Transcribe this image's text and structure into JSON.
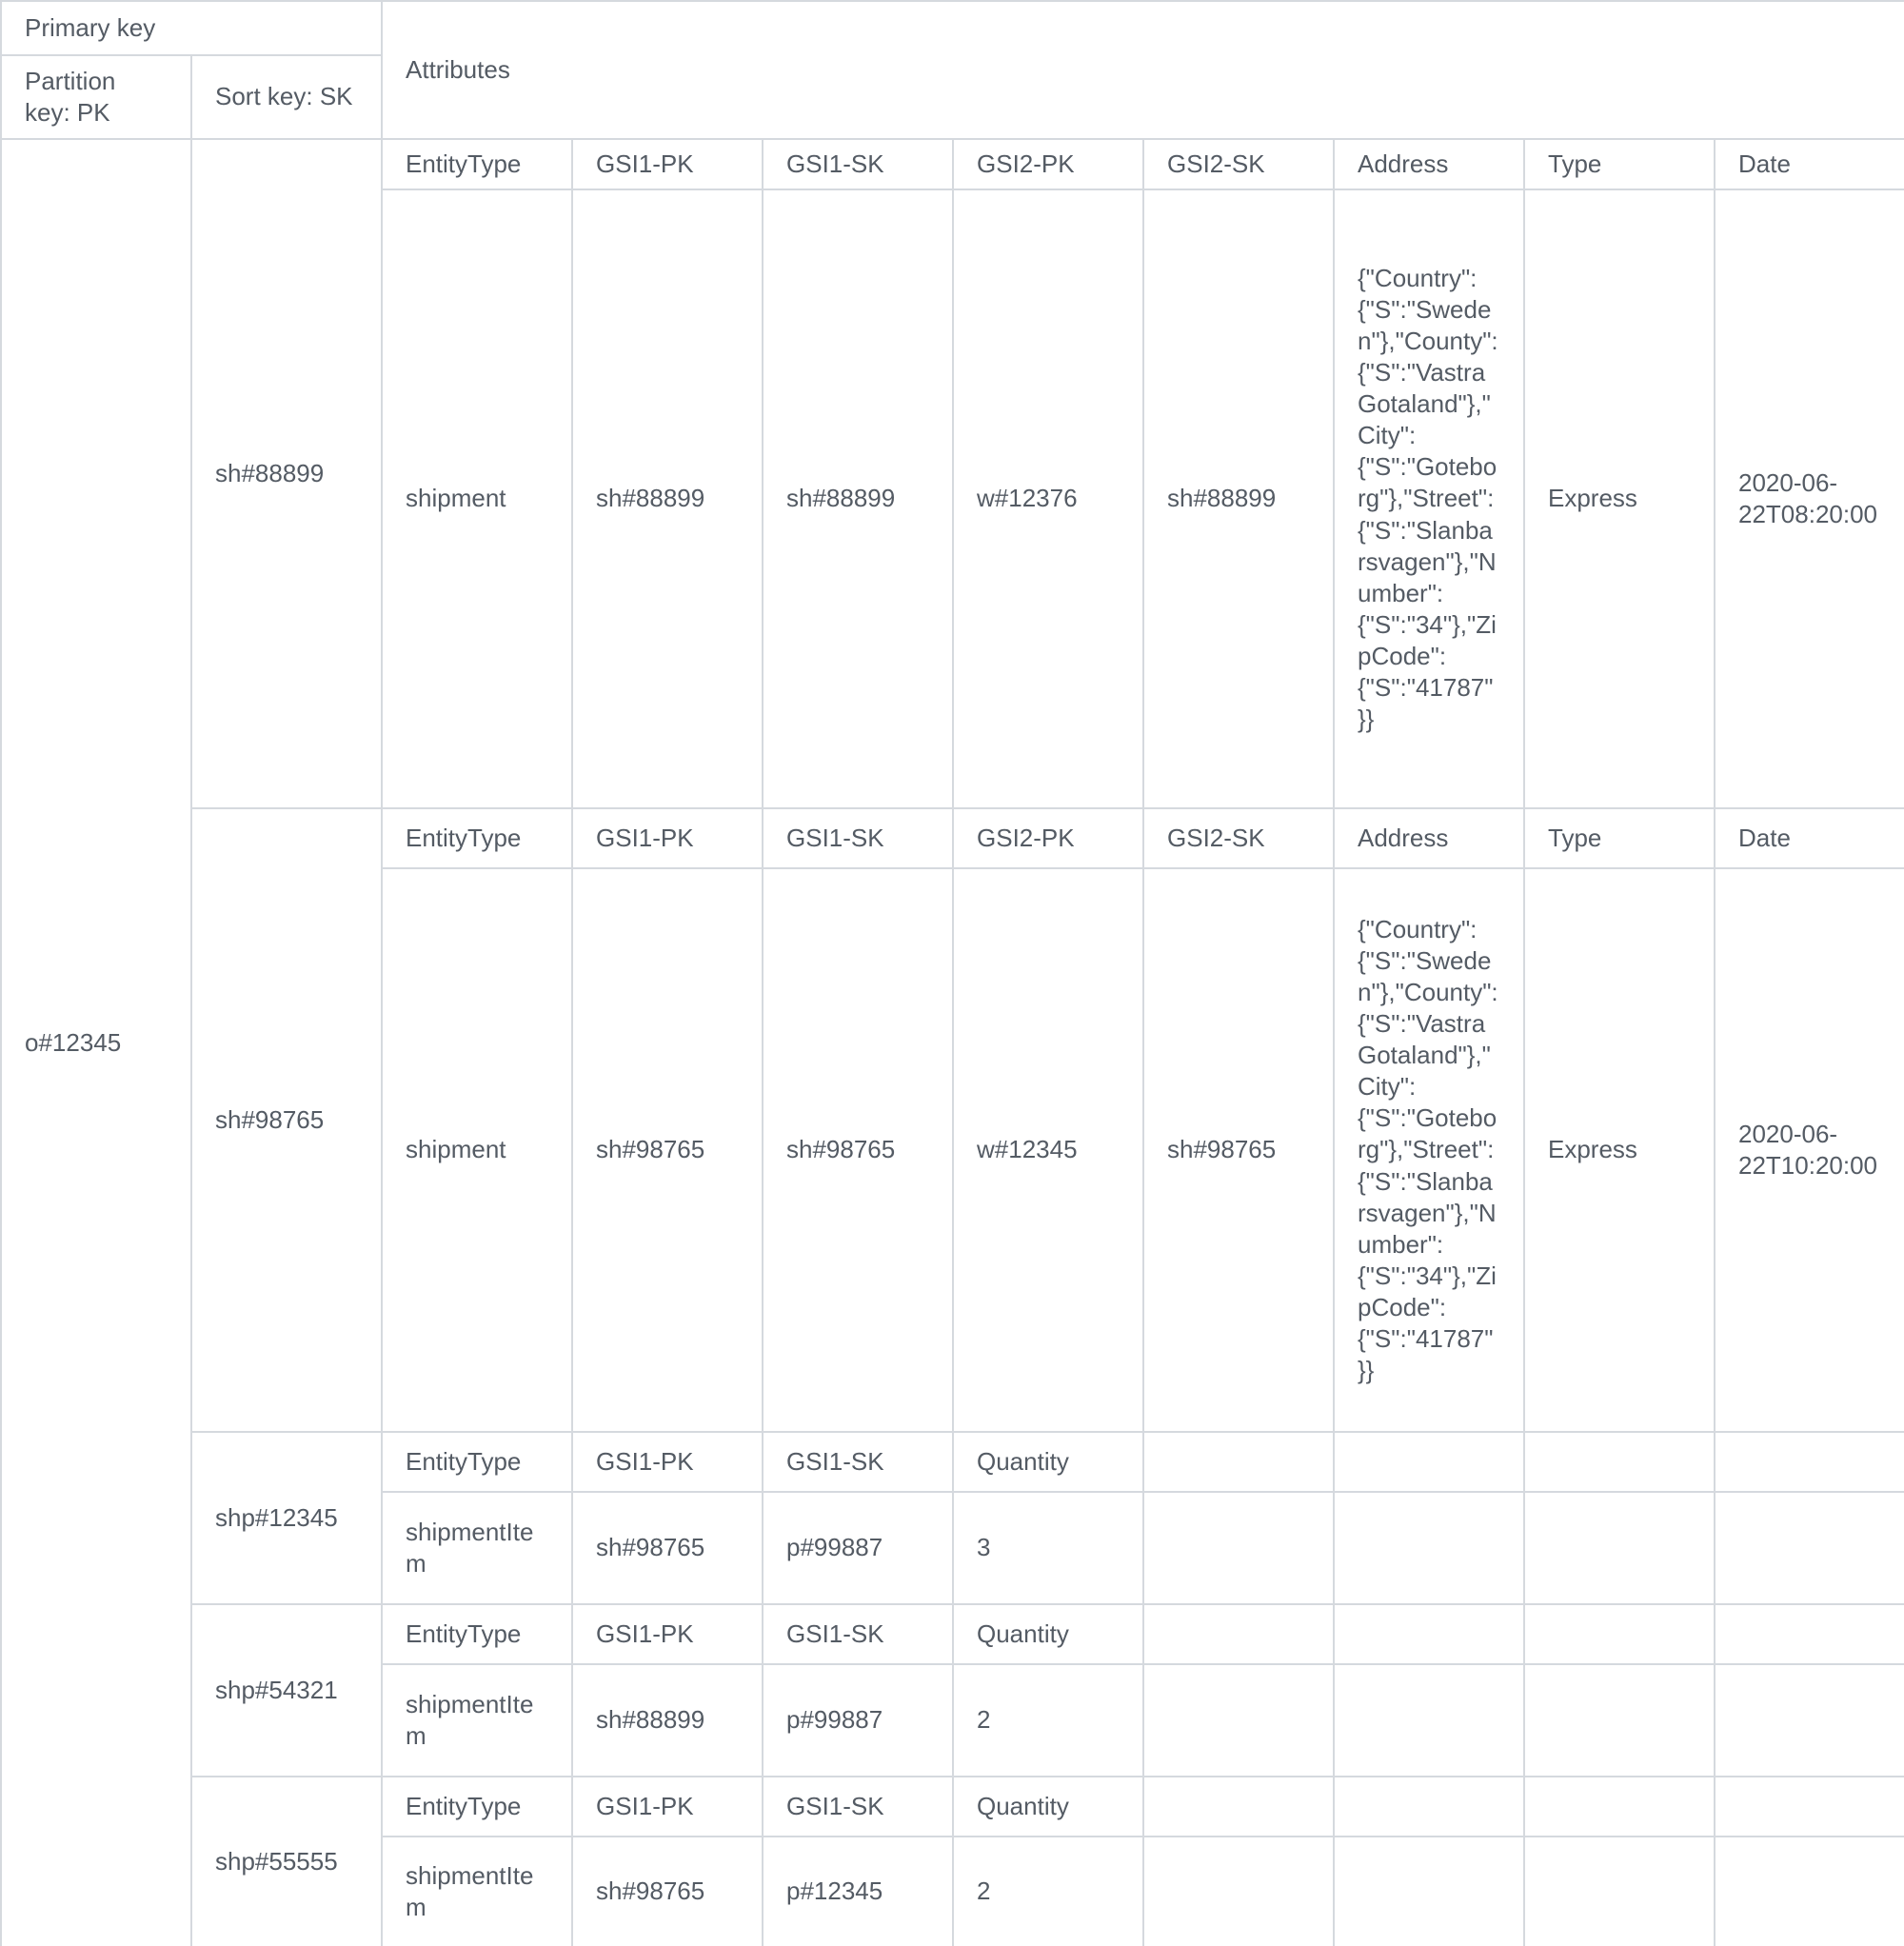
{
  "colors": {
    "header_bg": "#e9edf6",
    "border": "#d5d9de",
    "text": "#545b64",
    "cell_bg": "#ffffff"
  },
  "table": {
    "primary_key_header": "Primary key",
    "partition_key_header": "Partition key: PK",
    "sort_key_header": "Sort key: SK",
    "attributes_header": "Attributes",
    "partition_key_value": "o#12345",
    "blocks": [
      {
        "sk": "sh#88899",
        "headers": [
          "EntityType",
          "GSI1-PK",
          "GSI1-SK",
          "GSI2-PK",
          "GSI2-SK",
          "Address",
          "Type",
          "Date"
        ],
        "values": [
          "shipment",
          "sh#88899",
          "sh#88899",
          "w#12376",
          "sh#88899",
          "{\"Country\":{\"S\":\"Sweden\"},\"County\":{\"S\":\"Vastra Gotaland\"},\"City\":{\"S\":\"Goteborg\"},\"Street\":{\"S\":\"Slanbarsvagen\"},\"Number\":{\"S\":\"34\"},\"ZipCode\":{\"S\":\"41787\"}}",
          "Express",
          "2020-06-22T08:20:00"
        ]
      },
      {
        "sk": "sh#98765",
        "headers": [
          "EntityType",
          "GSI1-PK",
          "GSI1-SK",
          "GSI2-PK",
          "GSI2-SK",
          "Address",
          "Type",
          "Date"
        ],
        "values": [
          "shipment",
          "sh#98765",
          "sh#98765",
          "w#12345",
          "sh#98765",
          "{\"Country\":{\"S\":\"Sweden\"},\"County\":{\"S\":\"Vastra Gotaland\"},\"City\":{\"S\":\"Goteborg\"},\"Street\":{\"S\":\"Slanbarsvagen\"},\"Number\":{\"S\":\"34\"},\"ZipCode\":{\"S\":\"41787\"}}",
          "Express",
          "2020-06-22T10:20:00"
        ]
      },
      {
        "sk": "shp#12345",
        "headers": [
          "EntityType",
          "GSI1-PK",
          "GSI1-SK",
          "Quantity"
        ],
        "values": [
          "shipmentItem",
          "sh#98765",
          "p#99887",
          "3"
        ]
      },
      {
        "sk": "shp#54321",
        "headers": [
          "EntityType",
          "GSI1-PK",
          "GSI1-SK",
          "Quantity"
        ],
        "values": [
          "shipmentItem",
          "sh#88899",
          "p#99887",
          "2"
        ]
      },
      {
        "sk": "shp#55555",
        "headers": [
          "EntityType",
          "GSI1-PK",
          "GSI1-SK",
          "Quantity"
        ],
        "values": [
          "shipmentItem",
          "sh#98765",
          "p#12345",
          "2"
        ]
      }
    ]
  }
}
